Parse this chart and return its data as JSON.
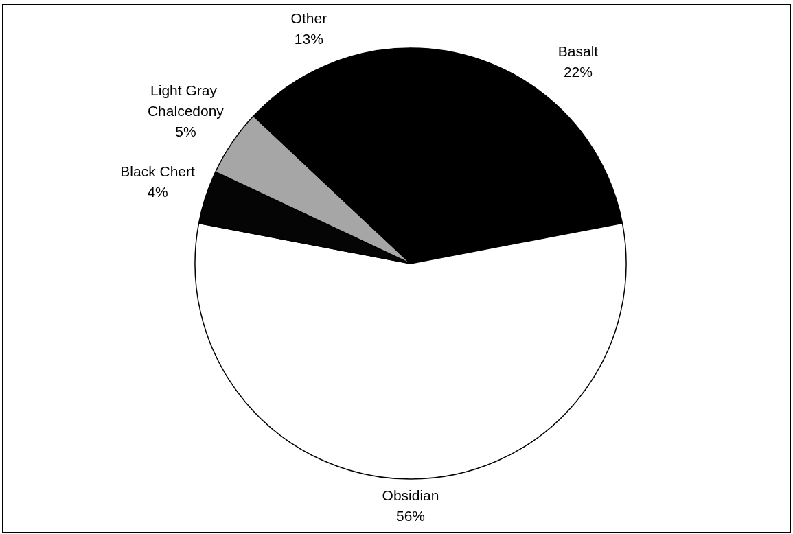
{
  "chart_data": {
    "type": "pie",
    "categories": [
      "Basalt",
      "Obsidian",
      "Black Chert",
      "Light Gray Chalcedony",
      "Other"
    ],
    "values": [
      22,
      56,
      4,
      5,
      13
    ],
    "colors": [
      "#000000",
      "#ffffff",
      "#050505",
      "#a6a6a6",
      "#000000"
    ],
    "value_labels": [
      "22%",
      "56%",
      "4%",
      "5%",
      "13%"
    ]
  }
}
